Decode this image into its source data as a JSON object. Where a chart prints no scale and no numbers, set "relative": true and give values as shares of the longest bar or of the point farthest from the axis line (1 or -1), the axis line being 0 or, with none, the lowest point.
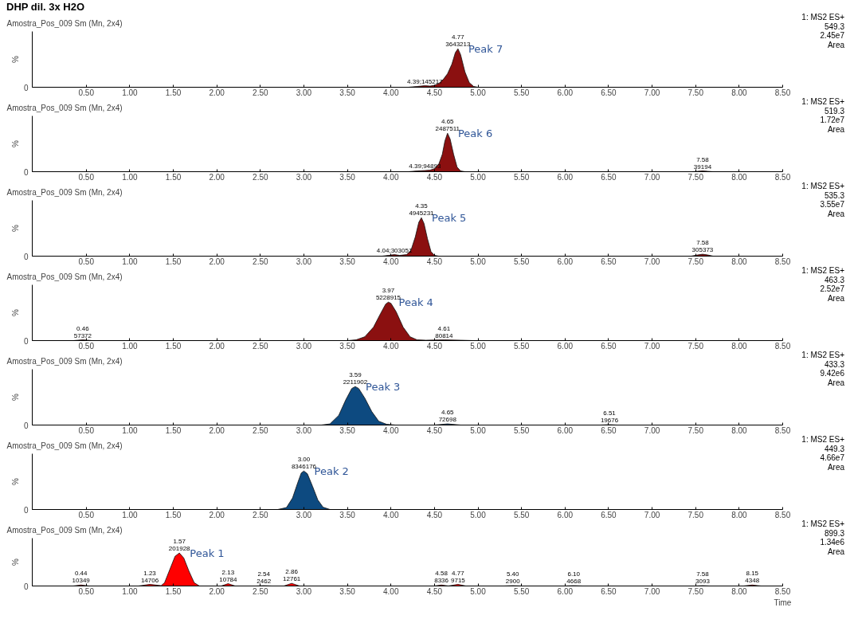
{
  "chart_data": [
    {
      "type": "area",
      "title": "DHP dil. 3x H2O",
      "subtitle": "Amostra_Pos_009 Sm (Mn, 2x4)",
      "ylabel": "%",
      "relative": true,
      "grid": false,
      "xlim": [
        -0.12,
        8.5
      ],
      "xticks": [
        {
          "value": 0.5,
          "label": "0.50"
        },
        {
          "value": 1,
          "label": "1.00"
        },
        {
          "value": 1.5,
          "label": "1.50"
        },
        {
          "value": 2,
          "label": "2.00"
        },
        {
          "value": 2.5,
          "label": "2.50"
        },
        {
          "value": 3,
          "label": "3.00"
        },
        {
          "value": 3.5,
          "label": "3.50"
        },
        {
          "value": 4,
          "label": "4.00"
        },
        {
          "value": 4.5,
          "label": "4.50"
        },
        {
          "value": 5,
          "label": "5.00"
        },
        {
          "value": 5.5,
          "label": "5.50"
        },
        {
          "value": 6,
          "label": "6.00"
        },
        {
          "value": 6.5,
          "label": "6.50"
        },
        {
          "value": 7,
          "label": "7.00"
        },
        {
          "value": 7.5,
          "label": "7.50"
        },
        {
          "value": 8,
          "label": "8.00"
        },
        {
          "value": 8.5,
          "label": "8.50"
        }
      ],
      "series": [
        {
          "name": "Peak 7",
          "color": "#8b1010",
          "x": [
            -0.12,
            4.2,
            4.3,
            4.39,
            4.45,
            4.5,
            4.55,
            4.6,
            4.65,
            4.7,
            4.74,
            4.77,
            4.8,
            4.85,
            4.9,
            4.95,
            5.0,
            8.5
          ],
          "values": [
            0,
            0,
            0.02,
            0.04,
            0.03,
            0.05,
            0.1,
            0.2,
            0.35,
            0.6,
            0.9,
            1,
            0.85,
            0.4,
            0.12,
            0.02,
            0,
            0
          ]
        }
      ],
      "annotations": [
        "1: MS2 ES+",
        "549.3",
        "2.45e7",
        "Area",
        {
          "text": "0",
          "x": -0.12,
          "y": 0
        },
        {
          "text": "4.77\n3643213",
          "x": 4.77,
          "y": 1
        },
        {
          "text": "4.39;145217",
          "x": 4.39,
          "y": 0.04
        }
      ]
    },
    {
      "type": "area",
      "subtitle": "Amostra_Pos_009 Sm (Mn, 2x4)",
      "ylabel": "%",
      "relative": true,
      "grid": false,
      "xlim": [
        -0.12,
        8.5
      ],
      "xticks": [
        {
          "value": 0.5,
          "label": "0.50"
        },
        {
          "value": 1,
          "label": "1.00"
        },
        {
          "value": 1.5,
          "label": "1.50"
        },
        {
          "value": 2,
          "label": "2.00"
        },
        {
          "value": 2.5,
          "label": "2.50"
        },
        {
          "value": 3,
          "label": "3.00"
        },
        {
          "value": 3.5,
          "label": "3.50"
        },
        {
          "value": 4,
          "label": "4.00"
        },
        {
          "value": 4.5,
          "label": "4.50"
        },
        {
          "value": 5,
          "label": "5.00"
        },
        {
          "value": 5.5,
          "label": "5.50"
        },
        {
          "value": 6,
          "label": "6.00"
        },
        {
          "value": 6.5,
          "label": "6.50"
        },
        {
          "value": 7,
          "label": "7.00"
        },
        {
          "value": 7.5,
          "label": "7.50"
        },
        {
          "value": 8,
          "label": "8.00"
        },
        {
          "value": 8.5,
          "label": "8.50"
        }
      ],
      "series": [
        {
          "name": "Peak 6",
          "color": "#8b1010",
          "x": [
            -0.12,
            4.2,
            4.3,
            4.39,
            4.45,
            4.5,
            4.55,
            4.59,
            4.62,
            4.65,
            4.68,
            4.72,
            4.76,
            4.8,
            4.85,
            7.45,
            7.52,
            7.58,
            7.64,
            7.7,
            8.5
          ],
          "values": [
            0,
            0,
            0.02,
            0.03,
            0.04,
            0.08,
            0.2,
            0.45,
            0.8,
            1,
            0.85,
            0.45,
            0.12,
            0.02,
            0,
            0,
            0.01,
            0.02,
            0.01,
            0,
            0
          ]
        }
      ],
      "annotations": [
        "1: MS2 ES+",
        "519.3",
        "1.72e7",
        "Area",
        {
          "text": "0",
          "x": -0.12,
          "y": 0
        },
        {
          "text": "4.65\n2487511",
          "x": 4.65,
          "y": 1
        },
        {
          "text": "4.39;94893",
          "x": 4.39,
          "y": 0.03
        },
        {
          "text": "7.58\n39194",
          "x": 7.58,
          "y": 0.02
        }
      ]
    },
    {
      "type": "area",
      "subtitle": "Amostra_Pos_009 Sm (Mn, 2x4)",
      "ylabel": "%",
      "relative": true,
      "grid": false,
      "xlim": [
        -0.12,
        8.5
      ],
      "xticks": [
        {
          "value": 0.5,
          "label": "0.50"
        },
        {
          "value": 1,
          "label": "1.00"
        },
        {
          "value": 1.5,
          "label": "1.50"
        },
        {
          "value": 2,
          "label": "2.00"
        },
        {
          "value": 2.5,
          "label": "2.50"
        },
        {
          "value": 3,
          "label": "3.00"
        },
        {
          "value": 3.5,
          "label": "3.50"
        },
        {
          "value": 4,
          "label": "4.00"
        },
        {
          "value": 4.5,
          "label": "4.50"
        },
        {
          "value": 5,
          "label": "5.00"
        },
        {
          "value": 5.5,
          "label": "5.50"
        },
        {
          "value": 6,
          "label": "6.00"
        },
        {
          "value": 6.5,
          "label": "6.50"
        },
        {
          "value": 7,
          "label": "7.00"
        },
        {
          "value": 7.5,
          "label": "7.50"
        },
        {
          "value": 8,
          "label": "8.00"
        },
        {
          "value": 8.5,
          "label": "8.50"
        }
      ],
      "series": [
        {
          "name": "Peak 5",
          "color": "#8b1010",
          "x": [
            -0.12,
            3.9,
            3.97,
            4.04,
            4.1,
            4.18,
            4.23,
            4.28,
            4.32,
            4.35,
            4.38,
            4.42,
            4.46,
            4.5,
            4.55,
            7.45,
            7.52,
            7.58,
            7.64,
            7.7,
            8.5
          ],
          "values": [
            0,
            0,
            0.02,
            0.04,
            0.02,
            0.04,
            0.15,
            0.5,
            0.88,
            1,
            0.85,
            0.45,
            0.12,
            0.02,
            0,
            0,
            0.03,
            0.05,
            0.03,
            0,
            0
          ]
        }
      ],
      "annotations": [
        "1: MS2 ES+",
        "535.3",
        "3.55e7",
        "Area",
        {
          "text": "0",
          "x": -0.12,
          "y": 0
        },
        {
          "text": "4.35\n4945231",
          "x": 4.35,
          "y": 1
        },
        {
          "text": "4.04;303051",
          "x": 4.04,
          "y": 0.04
        },
        {
          "text": "7.58\n305373",
          "x": 7.58,
          "y": 0.05
        }
      ]
    },
    {
      "type": "area",
      "subtitle": "Amostra_Pos_009 Sm (Mn, 2x4)",
      "ylabel": "%",
      "relative": true,
      "grid": false,
      "xlim": [
        -0.12,
        8.5
      ],
      "xticks": [
        {
          "value": 0.5,
          "label": "0.50"
        },
        {
          "value": 1,
          "label": "1.00"
        },
        {
          "value": 1.5,
          "label": "1.50"
        },
        {
          "value": 2,
          "label": "2.00"
        },
        {
          "value": 2.5,
          "label": "2.50"
        },
        {
          "value": 3,
          "label": "3.00"
        },
        {
          "value": 3.5,
          "label": "3.50"
        },
        {
          "value": 4,
          "label": "4.00"
        },
        {
          "value": 4.5,
          "label": "4.50"
        },
        {
          "value": 5,
          "label": "5.00"
        },
        {
          "value": 5.5,
          "label": "5.50"
        },
        {
          "value": 6,
          "label": "6.00"
        },
        {
          "value": 6.5,
          "label": "6.50"
        },
        {
          "value": 7,
          "label": "7.00"
        },
        {
          "value": 7.5,
          "label": "7.50"
        },
        {
          "value": 8,
          "label": "8.00"
        },
        {
          "value": 8.5,
          "label": "8.50"
        }
      ],
      "series": [
        {
          "name": "Peak 4",
          "color": "#8b1010",
          "x": [
            -0.12,
            0.35,
            0.46,
            0.57,
            3.5,
            3.6,
            3.7,
            3.8,
            3.88,
            3.94,
            3.97,
            4.0,
            4.06,
            4.14,
            4.22,
            4.3,
            4.4,
            4.61,
            4.8,
            4.95,
            8.5
          ],
          "values": [
            0,
            0,
            0.02,
            0,
            0,
            0.02,
            0.1,
            0.35,
            0.7,
            0.95,
            1,
            0.97,
            0.75,
            0.35,
            0.1,
            0.02,
            0.01,
            0.02,
            0.01,
            0,
            0
          ]
        }
      ],
      "annotations": [
        "1: MS2 ES+",
        "463.3",
        "2.52e7",
        "Area",
        {
          "text": "0",
          "x": -0.12,
          "y": 0
        },
        {
          "text": "3.97\n5228915",
          "x": 3.97,
          "y": 1
        },
        {
          "text": "0.46\n57372",
          "x": 0.46,
          "y": 0.02
        },
        {
          "text": "4.61\n80814",
          "x": 4.61,
          "y": 0.02
        }
      ]
    },
    {
      "type": "area",
      "subtitle": "Amostra_Pos_009 Sm (Mn, 2x4)",
      "ylabel": "%",
      "relative": true,
      "grid": false,
      "xlim": [
        -0.12,
        8.5
      ],
      "xticks": [
        {
          "value": 0.5,
          "label": "0.50"
        },
        {
          "value": 1,
          "label": "1.00"
        },
        {
          "value": 1.5,
          "label": "1.50"
        },
        {
          "value": 2,
          "label": "2.00"
        },
        {
          "value": 2.5,
          "label": "2.50"
        },
        {
          "value": 3,
          "label": "3.00"
        },
        {
          "value": 3.5,
          "label": "3.50"
        },
        {
          "value": 4,
          "label": "4.00"
        },
        {
          "value": 4.5,
          "label": "4.50"
        },
        {
          "value": 5,
          "label": "5.00"
        },
        {
          "value": 5.5,
          "label": "5.50"
        },
        {
          "value": 6,
          "label": "6.00"
        },
        {
          "value": 6.5,
          "label": "6.50"
        },
        {
          "value": 7,
          "label": "7.00"
        },
        {
          "value": 7.5,
          "label": "7.50"
        },
        {
          "value": 8,
          "label": "8.00"
        },
        {
          "value": 8.5,
          "label": "8.50"
        }
      ],
      "series": [
        {
          "name": "Peak 3",
          "color": "#0d4a80",
          "x": [
            -0.12,
            3.2,
            3.3,
            3.4,
            3.48,
            3.55,
            3.59,
            3.63,
            3.7,
            3.78,
            3.86,
            3.95,
            4.05,
            4.5,
            4.65,
            4.8,
            6.4,
            6.51,
            6.6,
            8.5
          ],
          "values": [
            0,
            0,
            0.03,
            0.25,
            0.65,
            0.95,
            1,
            0.95,
            0.7,
            0.35,
            0.1,
            0.02,
            0,
            0,
            0.03,
            0,
            0,
            0.01,
            0,
            0
          ]
        }
      ],
      "annotations": [
        "1: MS2 ES+",
        "433.3",
        "9.42e6",
        "Area",
        {
          "text": "0",
          "x": -0.12,
          "y": 0
        },
        {
          "text": "3.59\n2211902",
          "x": 3.59,
          "y": 1
        },
        {
          "text": "4.65\n72698",
          "x": 4.65,
          "y": 0.03
        },
        {
          "text": "6.51\n19676",
          "x": 6.51,
          "y": 0.01
        }
      ]
    },
    {
      "type": "area",
      "subtitle": "Amostra_Pos_009 Sm (Mn, 2x4)",
      "ylabel": "%",
      "relative": true,
      "grid": false,
      "xlim": [
        -0.12,
        8.5
      ],
      "xticks": [
        {
          "value": 0.5,
          "label": "0.50"
        },
        {
          "value": 1,
          "label": "1.00"
        },
        {
          "value": 1.5,
          "label": "1.50"
        },
        {
          "value": 2,
          "label": "2.00"
        },
        {
          "value": 2.5,
          "label": "2.50"
        },
        {
          "value": 3,
          "label": "3.00"
        },
        {
          "value": 3.5,
          "label": "3.50"
        },
        {
          "value": 4,
          "label": "4.00"
        },
        {
          "value": 4.5,
          "label": "4.50"
        },
        {
          "value": 5,
          "label": "5.00"
        },
        {
          "value": 5.5,
          "label": "5.50"
        },
        {
          "value": 6,
          "label": "6.00"
        },
        {
          "value": 6.5,
          "label": "6.50"
        },
        {
          "value": 7,
          "label": "7.00"
        },
        {
          "value": 7.5,
          "label": "7.50"
        },
        {
          "value": 8,
          "label": "8.00"
        },
        {
          "value": 8.5,
          "label": "8.50"
        }
      ],
      "series": [
        {
          "name": "Peak 2",
          "color": "#0d4a80",
          "x": [
            -0.12,
            2.7,
            2.8,
            2.87,
            2.93,
            2.97,
            3.0,
            3.04,
            3.1,
            3.16,
            3.22,
            3.3,
            8.5
          ],
          "values": [
            0,
            0,
            0.05,
            0.3,
            0.7,
            0.95,
            1,
            0.93,
            0.6,
            0.25,
            0.06,
            0,
            0
          ]
        }
      ],
      "annotations": [
        "1: MS2 ES+",
        "449.3",
        "4.66e7",
        "Area",
        {
          "text": "0",
          "x": -0.12,
          "y": 0
        },
        {
          "text": "3.00\n8346176",
          "x": 3.0,
          "y": 1
        }
      ]
    },
    {
      "type": "area",
      "subtitle": "Amostra_Pos_009 Sm (Mn, 2x4)",
      "ylabel": "%",
      "xlabel": "Time",
      "relative": true,
      "grid": false,
      "xlim": [
        -0.12,
        8.5
      ],
      "xticks": [
        {
          "value": 0.5,
          "label": "0.50"
        },
        {
          "value": 1,
          "label": "1.00"
        },
        {
          "value": 1.5,
          "label": "1.50"
        },
        {
          "value": 2,
          "label": "2.00"
        },
        {
          "value": 2.5,
          "label": "2.50"
        },
        {
          "value": 3,
          "label": "3.00"
        },
        {
          "value": 3.5,
          "label": "3.50"
        },
        {
          "value": 4,
          "label": "4.00"
        },
        {
          "value": 4.5,
          "label": "4.50"
        },
        {
          "value": 5,
          "label": "5.00"
        },
        {
          "value": 5.5,
          "label": "5.50"
        },
        {
          "value": 6,
          "label": "6.00"
        },
        {
          "value": 6.5,
          "label": "6.50"
        },
        {
          "value": 7,
          "label": "7.00"
        },
        {
          "value": 7.5,
          "label": "7.50"
        },
        {
          "value": 8,
          "label": "8.00"
        },
        {
          "value": 8.5,
          "label": "8.50"
        }
      ],
      "series": [
        {
          "name": "Peak 1",
          "color": "#ff0000",
          "x": [
            -0.12,
            0.35,
            0.44,
            0.53,
            1.1,
            1.23,
            1.36,
            1.4,
            1.46,
            1.52,
            1.57,
            1.62,
            1.68,
            1.74,
            1.8,
            2.05,
            2.13,
            2.21,
            2.45,
            2.54,
            2.63,
            2.77,
            2.86,
            2.95,
            4.5,
            4.58,
            4.66,
            4.77,
            4.86,
            5.3,
            5.4,
            5.5,
            6.0,
            6.1,
            6.2,
            7.5,
            7.58,
            7.66,
            8.05,
            8.15,
            8.25,
            8.5
          ],
          "values": [
            0,
            0,
            0.03,
            0,
            0,
            0.05,
            0.01,
            0.1,
            0.5,
            0.9,
            1,
            0.85,
            0.45,
            0.1,
            0,
            0,
            0.07,
            0,
            0,
            0.01,
            0,
            0,
            0.08,
            0,
            0,
            0.03,
            0,
            0.05,
            0,
            0,
            0.01,
            0,
            0,
            0.01,
            0,
            0,
            0.01,
            0,
            0,
            0.03,
            0,
            0
          ]
        }
      ],
      "annotations": [
        "1: MS2 ES+",
        "899.3",
        "1.34e6",
        "Area",
        {
          "text": "0",
          "x": -0.12,
          "y": 0
        },
        {
          "text": "1.57\n201928",
          "x": 1.57,
          "y": 1
        },
        {
          "text": "0.44\n10349",
          "x": 0.44,
          "y": 0.03
        },
        {
          "text": "1.23\n14706",
          "x": 1.23,
          "y": 0.05
        },
        {
          "text": "2.13\n10784",
          "x": 2.13,
          "y": 0.07
        },
        {
          "text": "2.54\n2462",
          "x": 2.54,
          "y": 0.01
        },
        {
          "text": "2.86\n12761",
          "x": 2.86,
          "y": 0.08
        },
        {
          "text": "4.58\n8336",
          "x": 4.58,
          "y": 0.03
        },
        {
          "text": "4.77\n9715",
          "x": 4.77,
          "y": 0.05
        },
        {
          "text": "5.40\n2900",
          "x": 5.4,
          "y": 0.01
        },
        {
          "text": "6.10\n4668",
          "x": 6.1,
          "y": 0.01
        },
        {
          "text": "7.58\n3093",
          "x": 7.58,
          "y": 0.01
        },
        {
          "text": "8.15\n4348",
          "x": 8.15,
          "y": 0.03
        }
      ]
    }
  ]
}
